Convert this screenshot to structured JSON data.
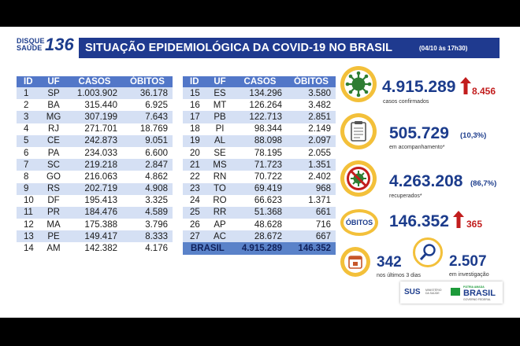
{
  "logo": {
    "line1": "DISQUE",
    "line2": "SAÚDE",
    "number": "136"
  },
  "header": {
    "title": "SITUAÇÃO EPIDEMIOLÓGICA DA COVID-19 NO BRASIL",
    "date": "(04/10 às 17h30)"
  },
  "table": {
    "headers": [
      "ID",
      "UF",
      "CASOS",
      "ÓBITOS"
    ],
    "left": [
      [
        "1",
        "SP",
        "1.003.902",
        "36.178"
      ],
      [
        "2",
        "BA",
        "315.440",
        "6.925"
      ],
      [
        "3",
        "MG",
        "307.199",
        "7.643"
      ],
      [
        "4",
        "RJ",
        "271.701",
        "18.769"
      ],
      [
        "5",
        "CE",
        "242.873",
        "9.051"
      ],
      [
        "6",
        "PA",
        "234.033",
        "6.600"
      ],
      [
        "7",
        "SC",
        "219.218",
        "2.847"
      ],
      [
        "8",
        "GO",
        "216.063",
        "4.862"
      ],
      [
        "9",
        "RS",
        "202.719",
        "4.908"
      ],
      [
        "10",
        "DF",
        "195.413",
        "3.325"
      ],
      [
        "11",
        "PR",
        "184.476",
        "4.589"
      ],
      [
        "12",
        "MA",
        "175.388",
        "3.796"
      ],
      [
        "13",
        "PE",
        "149.417",
        "8.333"
      ],
      [
        "14",
        "AM",
        "142.382",
        "4.176"
      ]
    ],
    "right": [
      [
        "15",
        "ES",
        "134.296",
        "3.580"
      ],
      [
        "16",
        "MT",
        "126.264",
        "3.482"
      ],
      [
        "17",
        "PB",
        "122.713",
        "2.851"
      ],
      [
        "18",
        "PI",
        "98.344",
        "2.149"
      ],
      [
        "19",
        "AL",
        "88.098",
        "2.097"
      ],
      [
        "20",
        "SE",
        "78.195",
        "2.055"
      ],
      [
        "21",
        "MS",
        "71.723",
        "1.351"
      ],
      [
        "22",
        "RN",
        "70.722",
        "2.402"
      ],
      [
        "23",
        "TO",
        "69.419",
        "968"
      ],
      [
        "24",
        "RO",
        "66.623",
        "1.371"
      ],
      [
        "25",
        "RR",
        "51.368",
        "661"
      ],
      [
        "26",
        "AP",
        "48.628",
        "716"
      ],
      [
        "27",
        "AC",
        "28.672",
        "667"
      ]
    ],
    "total": {
      "label": "BRASIL",
      "casos": "4.915.289",
      "obitos": "146.352"
    }
  },
  "stats": {
    "confirmed": {
      "value": "4.915.289",
      "delta": "8.456",
      "label": "casos confirmados"
    },
    "monitoring": {
      "value": "505.729",
      "pct": "(10,3%)",
      "label": "em acompanhamento*"
    },
    "recovered": {
      "value": "4.263.208",
      "pct": "(86,7%)",
      "label": "recuperados*"
    },
    "deaths": {
      "badge": "ÓBITOS",
      "value": "146.352",
      "delta": "365"
    },
    "recent": {
      "value": "342",
      "label": "nos últimos 3 dias"
    },
    "investigation": {
      "value": "2.507",
      "label": "em investigação"
    }
  },
  "footer": {
    "sus": "SUS",
    "ministry": "MINISTÉRIO DA SAÚDE",
    "patria": "PÁTRIA AMADA",
    "brasil": "BRASIL",
    "gov": "GOVERNO FEDERAL"
  },
  "colors": {
    "header_bg": "#1f3a8f",
    "table_header": "#5277c8",
    "row_stripe": "#d5e0f4",
    "accent_yellow": "#f3c03a",
    "alert_red": "#c21d1d",
    "virus_green": "#2e7d32"
  }
}
